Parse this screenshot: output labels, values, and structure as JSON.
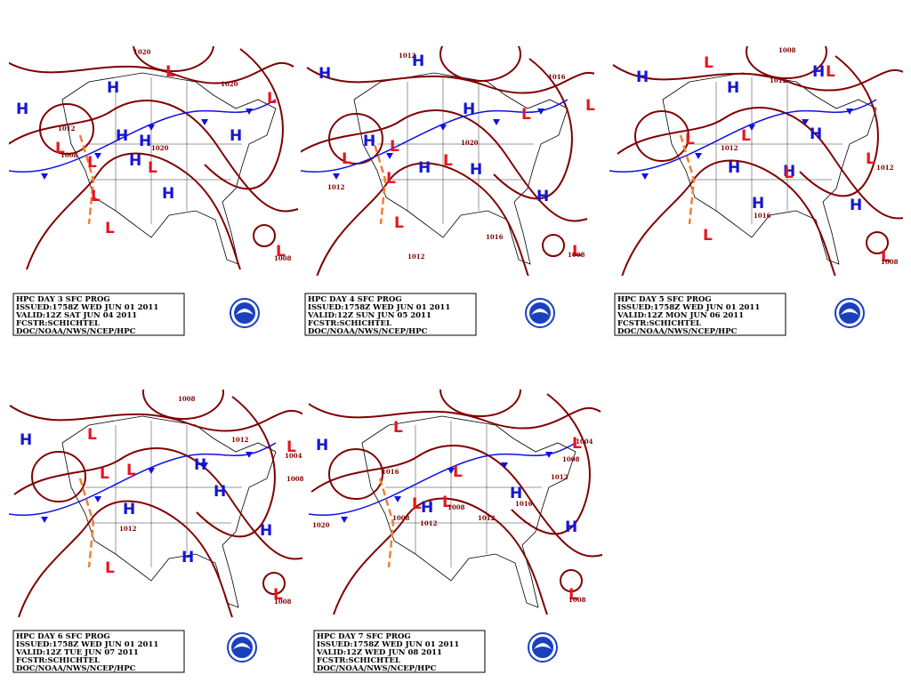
{
  "panels": [
    {
      "caption": [
        "HPC DAY 3 SFC PROG",
        "ISSUED:1758Z WED JUN 01 2011",
        "VALID:12Z SAT JUN 04 2011",
        "FCSTR:SCHICHTEL",
        "DOC/NOAA/NWS/NCEP/HPC"
      ],
      "highs": [
        "H",
        "H",
        "H",
        "H",
        "H",
        "H",
        "H"
      ],
      "lows": [
        "L",
        "L",
        "L",
        "L",
        "L",
        "L",
        "L",
        "L"
      ],
      "isobar_labels": [
        "1020",
        "1012",
        "1008",
        "1020",
        "1020",
        "1008"
      ]
    },
    {
      "caption": [
        "HPC DAY 4 SFC PROG",
        "ISSUED:1758Z WED JUN 01 2011",
        "VALID:12Z SUN JUN 05 2011",
        "FCSTR:SCHICHTEL",
        "DOC/NOAA/NWS/NCEP/HPC"
      ],
      "highs": [
        "H",
        "H",
        "H",
        "H",
        "H",
        "H",
        "H"
      ],
      "lows": [
        "L",
        "L",
        "L",
        "L",
        "L",
        "L",
        "L",
        "L"
      ],
      "isobar_labels": [
        "1012",
        "1016",
        "1012",
        "1020",
        "1016",
        "1008",
        "1012"
      ]
    },
    {
      "caption": [
        "HPC DAY 5 SFC PROG",
        "ISSUED:1758Z WED JUN 01 2011",
        "VALID:12Z MON JUN 06 2011",
        "FCSTR:SCHICHTEL",
        "DOC/NOAA/NWS/NCEP/HPC"
      ],
      "highs": [
        "H",
        "H",
        "H",
        "H",
        "H",
        "H",
        "H",
        "H"
      ],
      "lows": [
        "L",
        "L",
        "L",
        "L",
        "L",
        "L",
        "L",
        "L"
      ],
      "isobar_labels": [
        "1008",
        "1012",
        "1012",
        "1012",
        "1016",
        "1008"
      ]
    },
    {
      "caption": [
        "HPC DAY 6 SFC PROG",
        "ISSUED:1758Z WED JUN 01 2011",
        "VALID:12Z TUE JUN 07 2011",
        "FCSTR:SCHICHTEL",
        "DOC/NOAA/NWS/NCEP/HPC"
      ],
      "highs": [
        "H",
        "H",
        "H",
        "H",
        "H",
        "H"
      ],
      "lows": [
        "L",
        "L",
        "L",
        "L",
        "L",
        "L"
      ],
      "isobar_labels": [
        "1008",
        "1012",
        "1004",
        "1008",
        "1012",
        "1008"
      ]
    },
    {
      "caption": [
        "HPC DAY 7 SFC PROG",
        "ISSUED:1758Z WED JUN 01 2011",
        "VALID:12Z WED JUN 08 2011",
        "FCSTR:SCHICHTEL",
        "DOC/NOAA/NWS/NCEP/HPC"
      ],
      "highs": [
        "H",
        "H",
        "H",
        "H"
      ],
      "lows": [
        "L",
        "L",
        "L",
        "L",
        "L",
        "L"
      ],
      "isobar_labels": [
        "1004",
        "1008",
        "1012",
        "1016",
        "1008",
        "1012",
        "1008",
        "1012",
        "1016",
        "1020",
        "1008"
      ]
    }
  ]
}
